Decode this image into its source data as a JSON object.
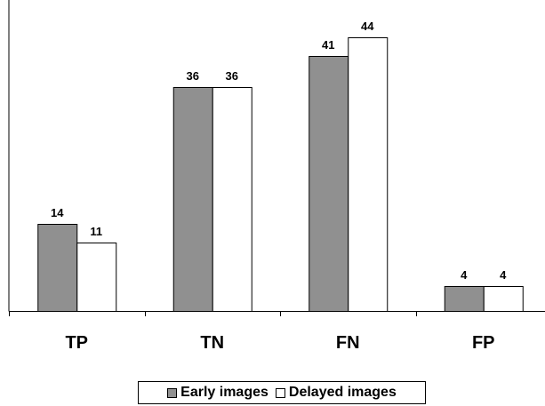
{
  "chart_data": {
    "type": "bar",
    "categories": [
      "TP",
      "TN",
      "FN",
      "FP"
    ],
    "series": [
      {
        "name": "Early images",
        "values": [
          14,
          36,
          41,
          4
        ],
        "color": "#909090"
      },
      {
        "name": "Delayed images",
        "values": [
          11,
          36,
          44,
          4
        ],
        "color": "#ffffff"
      }
    ],
    "ylim": [
      0,
      50
    ],
    "grid": false,
    "legend_position": "bottom"
  }
}
